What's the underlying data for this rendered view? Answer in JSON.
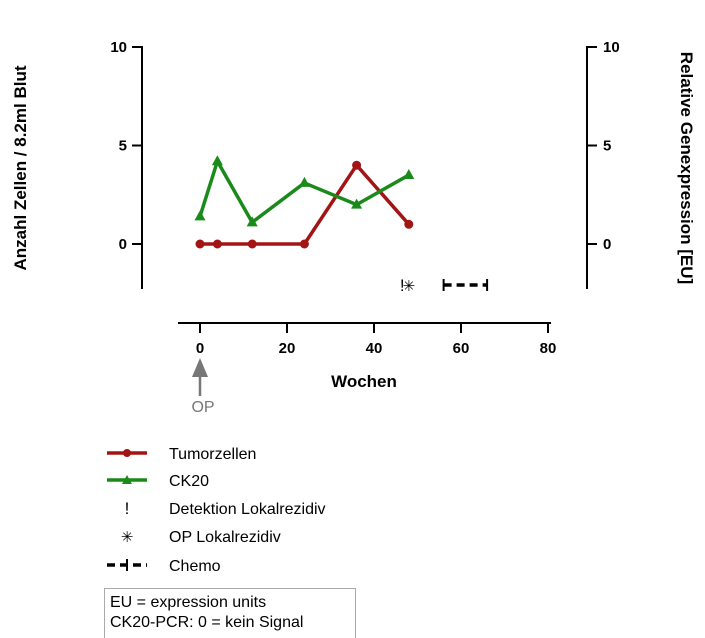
{
  "chart_data": {
    "type": "line",
    "xlabel": "Wochen",
    "ylabel_left": "Anzahl Zellen / 8.2ml Blut",
    "ylabel_right": "Relative Genexpression [EU]",
    "xlim": [
      -5,
      80
    ],
    "ylim": [
      -2.2,
      10
    ],
    "x_ticks": [
      "0",
      "20",
      "40",
      "60",
      "80"
    ],
    "y_ticks_left": [
      "0",
      "5",
      "10"
    ],
    "y_ticks_right": [
      "0",
      "5",
      "10"
    ],
    "series": [
      {
        "name": "Tumorzellen",
        "axis": "left",
        "color": "#a31515",
        "marker": "circle",
        "x": [
          0,
          4,
          12,
          24,
          36,
          48
        ],
        "y": [
          0,
          0,
          0,
          0,
          4,
          1
        ]
      },
      {
        "name": "CK20",
        "axis": "right",
        "color": "#1a8a1a",
        "marker": "triangle",
        "x": [
          0,
          4,
          12,
          24,
          36,
          48
        ],
        "y": [
          1.4,
          4.2,
          1.1,
          3.1,
          2,
          3.5
        ]
      }
    ],
    "events": [
      {
        "name": "Detektion Lokalrezidiv",
        "symbol": "!",
        "x": 46.5
      },
      {
        "name": "OP Lokalrezidiv",
        "symbol": "✳",
        "x": 48
      },
      {
        "name": "Chemo",
        "symbol": "dashed-bar",
        "x_start": 56,
        "x_end": 66
      }
    ],
    "op_marker": {
      "label": "OP",
      "x": 0
    },
    "note_lines": [
      "EU = expression units",
      "CK20-PCR: 0 = kein Signal"
    ]
  }
}
